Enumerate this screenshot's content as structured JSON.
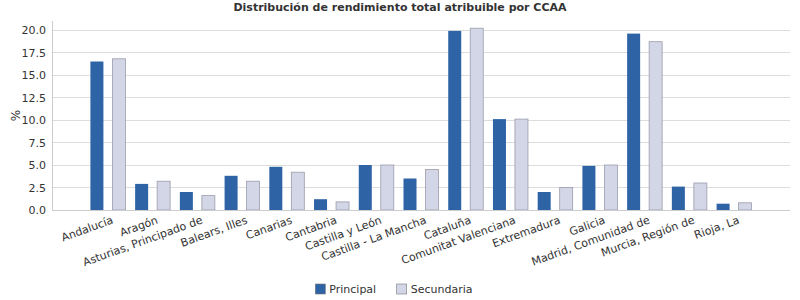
{
  "chart_data": {
    "type": "bar",
    "title": "Distribución de rendimiento total atribuible por CCAA",
    "y_label": "%",
    "categories": [
      "Andalucía",
      "Aragón",
      "Asturias, Principado de",
      "Balears, Illes",
      "Canarias",
      "Cantabria",
      "Castilla y León",
      "Castilla - La Mancha",
      "Cataluña",
      "Comunitat Valenciana",
      "Extremadura",
      "Galicia",
      "Madrid, Comunidad de",
      "Murcia, Región de",
      "Rioja, La"
    ],
    "series": [
      {
        "name": "Principal",
        "color": "#2e63a6",
        "values": [
          16.5,
          2.9,
          2.0,
          3.8,
          4.8,
          1.2,
          5.0,
          3.5,
          19.9,
          10.1,
          2.0,
          4.9,
          19.6,
          2.6,
          0.7
        ]
      },
      {
        "name": "Secundaria",
        "color": "#d3d6e6",
        "values": [
          16.8,
          3.2,
          1.6,
          3.2,
          4.2,
          0.9,
          5.0,
          4.5,
          20.2,
          10.1,
          2.5,
          5.0,
          18.7,
          3.0,
          0.8
        ]
      }
    ],
    "ylim": [
      0,
      21
    ],
    "yticks": [
      {
        "value": 0,
        "label": "0.0"
      },
      2.5,
      {
        "value": 5,
        "label": "5.0"
      },
      7.5,
      {
        "value": 10,
        "label": "10.0"
      },
      12.5,
      {
        "value": 15,
        "label": "15.0"
      },
      17.5,
      {
        "value": 20,
        "label": "20.0"
      }
    ],
    "grid": true,
    "legend": "bottom"
  }
}
